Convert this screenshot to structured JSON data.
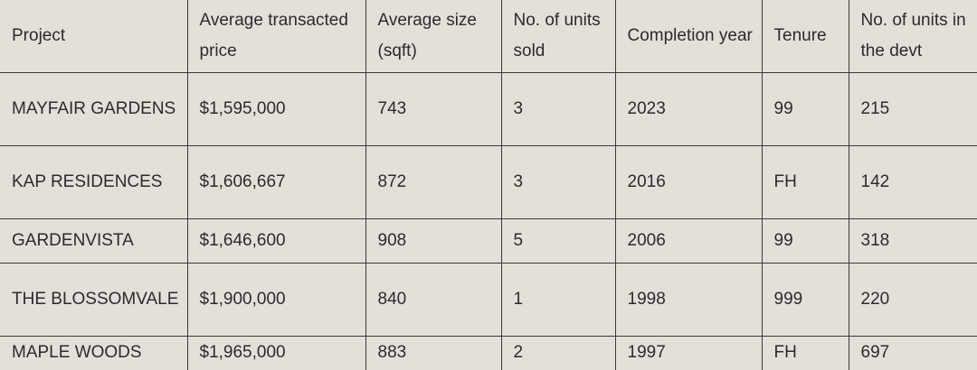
{
  "table": {
    "headers": [
      "Project",
      "Average transacted price",
      "Average size (sqft)",
      "No. of units sold",
      "Completion year",
      "Tenure",
      "No. of units in the devt"
    ],
    "rows": [
      [
        "MAYFAIR GARDENS",
        "$1,595,000",
        "743",
        "3",
        "2023",
        "99",
        "215"
      ],
      [
        "KAP RESIDENCES",
        "$1,606,667",
        "872",
        "3",
        "2016",
        "FH",
        "142"
      ],
      [
        "GARDENVISTA",
        "$1,646,600",
        "908",
        "5",
        "2006",
        "99",
        "318"
      ],
      [
        "THE BLOSSOMVALE",
        "$1,900,000",
        "840",
        "1",
        "1998",
        "999",
        "220"
      ],
      [
        "MAPLE WOODS",
        "$1,965,000",
        "883",
        "2",
        "1997",
        "FH",
        "697"
      ]
    ]
  }
}
